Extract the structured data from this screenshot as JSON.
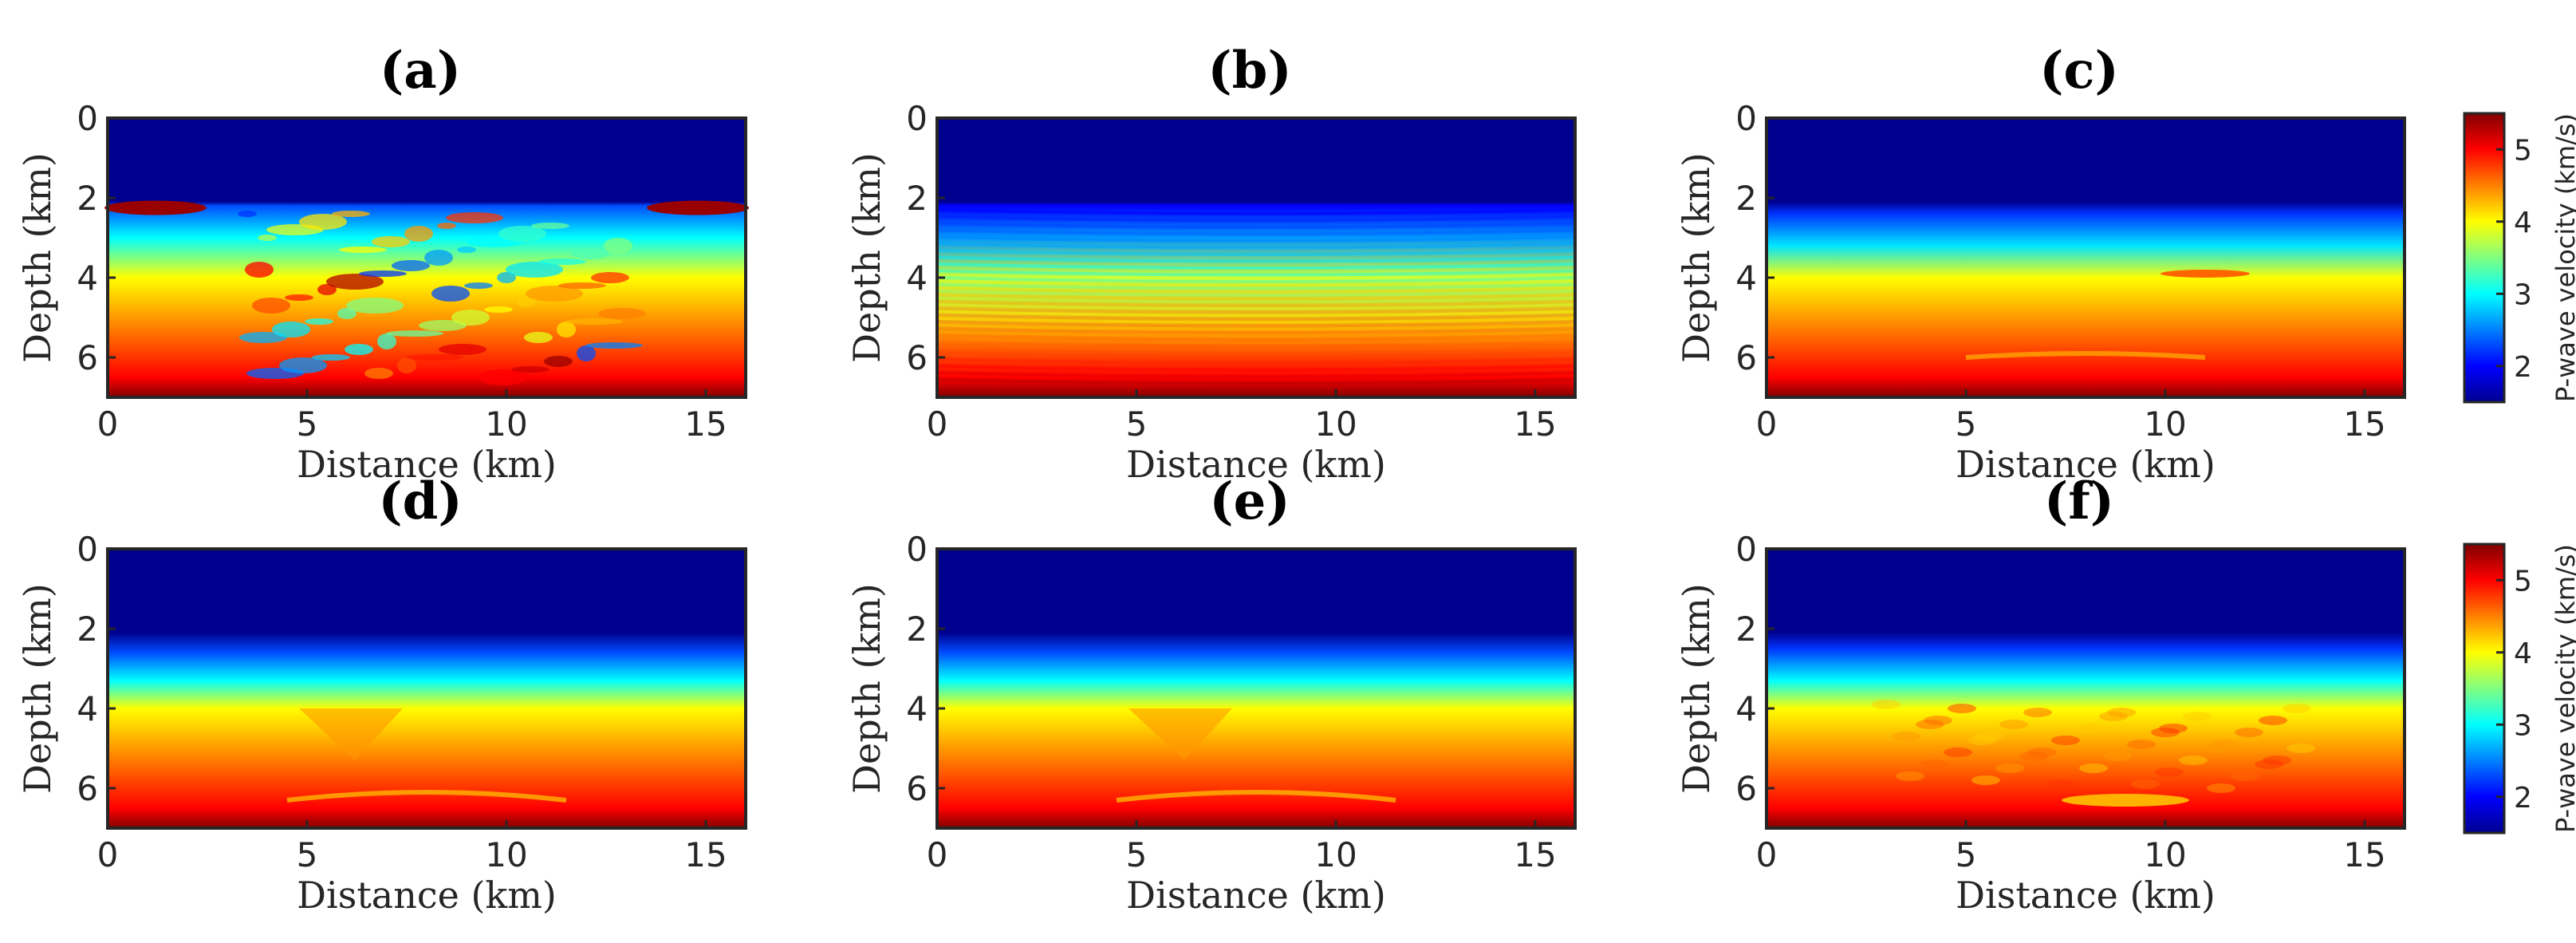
{
  "colormap": [
    "#00008f",
    "#0000ff",
    "#0080ff",
    "#00ffff",
    "#80ff80",
    "#ffff00",
    "#ff8000",
    "#ff0000",
    "#800000"
  ],
  "chart_data": [
    {
      "type": "heatmap",
      "panel_label": "(a)",
      "xlabel": "Distance (km)",
      "ylabel": "Depth (km)",
      "xlim": [
        0,
        16
      ],
      "ylim": [
        7,
        0
      ],
      "xticks": [
        "0",
        "5",
        "10",
        "15"
      ],
      "yticks": [
        "0",
        "2",
        "4",
        "6"
      ],
      "value_range": [
        1.5,
        5.5
      ],
      "water_velocity": 1.5,
      "depth_profile": [
        [
          0,
          1.5
        ],
        [
          2.1,
          1.5
        ],
        [
          2.2,
          2.3
        ],
        [
          3.0,
          3.0
        ],
        [
          4.0,
          4.0
        ],
        [
          5.5,
          4.6
        ],
        [
          6.5,
          5.0
        ],
        [
          7.0,
          5.5
        ]
      ],
      "features": "strong salt-body artifacts and high-velocity lenses at 2.2 km near both edges, heterogeneous central region"
    },
    {
      "type": "heatmap",
      "panel_label": "(b)",
      "xlabel": "Distance (km)",
      "ylabel": "Depth (km)",
      "xlim": [
        0,
        16
      ],
      "ylim": [
        7,
        0
      ],
      "xticks": [
        "0",
        "5",
        "10",
        "15"
      ],
      "yticks": [
        "0",
        "2",
        "4",
        "6"
      ],
      "value_range": [
        1.5,
        5.5
      ],
      "water_velocity": 1.5,
      "depth_profile": [
        [
          0,
          1.5
        ],
        [
          2.1,
          1.5
        ],
        [
          2.2,
          2.0
        ],
        [
          3.0,
          2.6
        ],
        [
          4.0,
          3.8
        ],
        [
          5.5,
          4.5
        ],
        [
          6.5,
          5.0
        ],
        [
          7.0,
          5.5
        ]
      ],
      "features": "oscillatory striped artifacts throughout sediment"
    },
    {
      "type": "heatmap",
      "panel_label": "(c)",
      "xlabel": "Distance (km)",
      "ylabel": "Depth (km)",
      "xlim": [
        0,
        16
      ],
      "ylim": [
        7,
        0
      ],
      "xticks": [
        "0",
        "5",
        "10",
        "15"
      ],
      "yticks": [
        "0",
        "2",
        "4",
        "6"
      ],
      "value_range": [
        1.5,
        5.5
      ],
      "water_velocity": 1.5,
      "colorbar": {
        "label": "P-wave velocity (km/s)",
        "ticks": [
          "2",
          "3",
          "4",
          "5"
        ]
      },
      "depth_profile": [
        [
          0,
          1.5
        ],
        [
          2.1,
          1.5
        ],
        [
          2.4,
          2.2
        ],
        [
          3.2,
          2.9
        ],
        [
          4.0,
          4.0
        ],
        [
          5.5,
          4.6
        ],
        [
          6.5,
          5.0
        ],
        [
          7.0,
          5.5
        ]
      ],
      "features": "smooth layering with lens near 10-12 km at 4 km depth"
    },
    {
      "type": "heatmap",
      "panel_label": "(d)",
      "xlabel": "Distance (km)",
      "ylabel": "Depth (km)",
      "xlim": [
        0,
        16
      ],
      "ylim": [
        7,
        0
      ],
      "xticks": [
        "0",
        "5",
        "10",
        "15"
      ],
      "yticks": [
        "0",
        "2",
        "4",
        "6"
      ],
      "value_range": [
        1.5,
        5.5
      ],
      "water_velocity": 1.5,
      "depth_profile": [
        [
          0,
          1.5
        ],
        [
          2.1,
          1.5
        ],
        [
          2.6,
          2.3
        ],
        [
          3.3,
          3.0
        ],
        [
          4.0,
          4.0
        ],
        [
          5.5,
          4.6
        ],
        [
          6.5,
          5.0
        ],
        [
          7.0,
          5.5
        ]
      ],
      "features": "smooth gradient, V-shaped feature near 6 km"
    },
    {
      "type": "heatmap",
      "panel_label": "(e)",
      "xlabel": "Distance (km)",
      "ylabel": "Depth (km)",
      "xlim": [
        0,
        16
      ],
      "ylim": [
        7,
        0
      ],
      "xticks": [
        "0",
        "5",
        "10",
        "15"
      ],
      "yticks": [
        "0",
        "2",
        "4",
        "6"
      ],
      "value_range": [
        1.5,
        5.5
      ],
      "water_velocity": 1.5,
      "depth_profile": [
        [
          0,
          1.5
        ],
        [
          2.1,
          1.5
        ],
        [
          2.6,
          2.3
        ],
        [
          3.3,
          3.0
        ],
        [
          4.0,
          4.0
        ],
        [
          5.5,
          4.6
        ],
        [
          6.5,
          5.0
        ],
        [
          7.0,
          5.5
        ]
      ],
      "features": "smooth gradient, V-shaped feature near 6 km"
    },
    {
      "type": "heatmap",
      "panel_label": "(f)",
      "xlabel": "Distance (km)",
      "ylabel": "Depth (km)",
      "xlim": [
        0,
        16
      ],
      "ylim": [
        7,
        0
      ],
      "xticks": [
        "0",
        "5",
        "10",
        "15"
      ],
      "yticks": [
        "0",
        "2",
        "4",
        "6"
      ],
      "value_range": [
        1.5,
        5.5
      ],
      "water_velocity": 1.5,
      "colorbar": {
        "label": "P-wave velocity (km/s)",
        "ticks": [
          "2",
          "3",
          "4",
          "5"
        ]
      },
      "depth_profile": [
        [
          0,
          1.5
        ],
        [
          2.1,
          1.5
        ],
        [
          2.5,
          2.2
        ],
        [
          3.3,
          3.0
        ],
        [
          4.0,
          4.0
        ],
        [
          5.5,
          4.6
        ],
        [
          6.5,
          5.0
        ],
        [
          7.0,
          5.5
        ]
      ],
      "features": "textured deeper region, high-velocity lens near 8-10 km at 6.3 km depth"
    }
  ]
}
